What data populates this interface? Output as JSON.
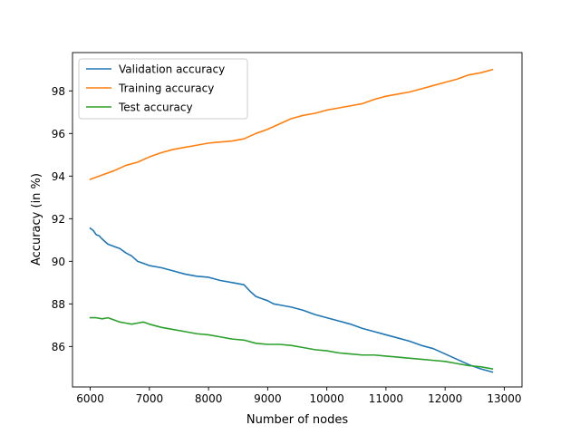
{
  "chart_data": {
    "type": "line",
    "title": "",
    "xlabel": "Number of nodes",
    "ylabel": "Accuracy (in %)",
    "xlim": [
      5700,
      13300
    ],
    "ylim": [
      84.1,
      99.8
    ],
    "xticks": [
      6000,
      7000,
      8000,
      9000,
      10000,
      11000,
      12000,
      13000
    ],
    "yticks": [
      86,
      88,
      90,
      92,
      94,
      96,
      98
    ],
    "grid": false,
    "legend": "top-left",
    "series": [
      {
        "name": "Validation accuracy",
        "color": "#1f77b4",
        "x": [
          6000,
          6050,
          6100,
          6150,
          6200,
          6300,
          6400,
          6500,
          6600,
          6700,
          6800,
          6900,
          7000,
          7200,
          7400,
          7600,
          7800,
          8000,
          8200,
          8400,
          8600,
          8700,
          8800,
          8900,
          9000,
          9100,
          9200,
          9400,
          9600,
          9800,
          10000,
          10200,
          10400,
          10600,
          10800,
          11000,
          11200,
          11400,
          11600,
          11800,
          12000,
          12200,
          12400,
          12600,
          12800
        ],
        "y": [
          91.55,
          91.45,
          91.25,
          91.2,
          91.05,
          90.8,
          90.7,
          90.6,
          90.4,
          90.25,
          90.0,
          89.9,
          89.8,
          89.7,
          89.55,
          89.4,
          89.3,
          89.25,
          89.1,
          89.0,
          88.9,
          88.6,
          88.35,
          88.25,
          88.15,
          88.0,
          87.95,
          87.85,
          87.7,
          87.5,
          87.35,
          87.2,
          87.05,
          86.85,
          86.7,
          86.55,
          86.4,
          86.25,
          86.05,
          85.9,
          85.65,
          85.4,
          85.15,
          84.95,
          84.8
        ]
      },
      {
        "name": "Training accuracy",
        "color": "#ff7f0e",
        "x": [
          6000,
          6200,
          6400,
          6600,
          6800,
          7000,
          7200,
          7400,
          7600,
          7800,
          8000,
          8200,
          8400,
          8600,
          8800,
          9000,
          9200,
          9400,
          9600,
          9800,
          10000,
          10200,
          10400,
          10600,
          10800,
          11000,
          11200,
          11400,
          11600,
          11800,
          12000,
          12200,
          12400,
          12600,
          12800
        ],
        "y": [
          93.85,
          94.05,
          94.25,
          94.5,
          94.65,
          94.9,
          95.1,
          95.25,
          95.35,
          95.45,
          95.55,
          95.6,
          95.65,
          95.75,
          96.0,
          96.2,
          96.45,
          96.7,
          96.85,
          96.95,
          97.1,
          97.2,
          97.3,
          97.4,
          97.6,
          97.75,
          97.85,
          97.95,
          98.1,
          98.25,
          98.4,
          98.55,
          98.75,
          98.85,
          99.0
        ]
      },
      {
        "name": "Test accuracy",
        "color": "#2ca02c",
        "x": [
          6000,
          6100,
          6200,
          6300,
          6400,
          6500,
          6600,
          6700,
          6800,
          6900,
          7000,
          7200,
          7400,
          7600,
          7800,
          8000,
          8200,
          8400,
          8600,
          8800,
          9000,
          9200,
          9400,
          9600,
          9800,
          10000,
          10200,
          10400,
          10600,
          10800,
          11000,
          11200,
          11400,
          11600,
          11800,
          12000,
          12200,
          12400,
          12600,
          12800
        ],
        "y": [
          87.35,
          87.35,
          87.3,
          87.35,
          87.25,
          87.15,
          87.1,
          87.05,
          87.1,
          87.15,
          87.05,
          86.9,
          86.8,
          86.7,
          86.6,
          86.55,
          86.45,
          86.35,
          86.3,
          86.15,
          86.1,
          86.1,
          86.05,
          85.95,
          85.85,
          85.8,
          85.7,
          85.65,
          85.6,
          85.6,
          85.55,
          85.5,
          85.45,
          85.4,
          85.35,
          85.3,
          85.2,
          85.1,
          85.05,
          84.95
        ]
      }
    ]
  }
}
